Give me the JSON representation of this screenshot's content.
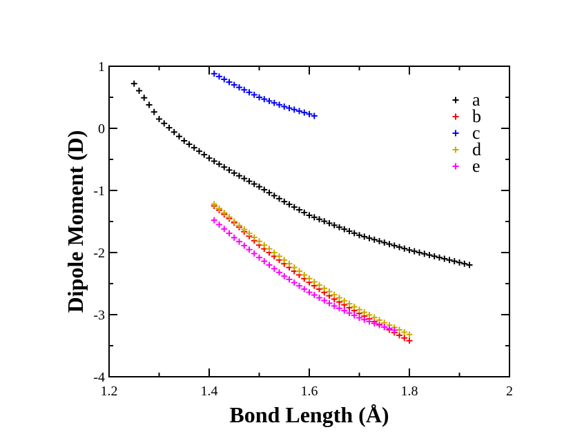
{
  "chart_data": {
    "type": "scatter",
    "title": "",
    "xlabel": "Bond Length (Å)",
    "ylabel": "Dipole Moment (D)",
    "xlim": [
      1.2,
      2.0
    ],
    "ylim": [
      -4,
      1
    ],
    "xticks": [
      1.2,
      1.4,
      1.6,
      1.8,
      2.0
    ],
    "xtick_labels": [
      "1.2",
      "1.4",
      "1.6",
      "1.8",
      "2"
    ],
    "yticks": [
      -4,
      -3,
      -2,
      -1,
      0,
      1
    ],
    "ytick_labels": [
      "-4",
      "-3",
      "-2",
      "-1",
      "0",
      "1"
    ],
    "grid": false,
    "marker": "+",
    "legend_position": "top-right",
    "series": [
      {
        "name": "a",
        "color": "#000000",
        "x": [
          1.25,
          1.3,
          1.35,
          1.4,
          1.45,
          1.5,
          1.55,
          1.6,
          1.65,
          1.7,
          1.75,
          1.8,
          1.85,
          1.9,
          1.92
        ],
        "y": [
          0.72,
          0.15,
          -0.2,
          -0.48,
          -0.72,
          -0.94,
          -1.18,
          -1.4,
          -1.56,
          -1.72,
          -1.84,
          -1.96,
          -2.06,
          -2.16,
          -2.2
        ]
      },
      {
        "name": "b",
        "color": "#ff0000",
        "x": [
          1.41,
          1.45,
          1.5,
          1.55,
          1.6,
          1.65,
          1.7,
          1.75,
          1.8
        ],
        "y": [
          -1.25,
          -1.52,
          -1.88,
          -2.18,
          -2.48,
          -2.75,
          -2.98,
          -3.2,
          -3.42
        ]
      },
      {
        "name": "c",
        "color": "#0000ff",
        "x": [
          1.41,
          1.45,
          1.5,
          1.55,
          1.6,
          1.61
        ],
        "y": [
          0.88,
          0.7,
          0.5,
          0.35,
          0.23,
          0.2
        ]
      },
      {
        "name": "d",
        "color": "#ccaa00",
        "x": [
          1.41,
          1.45,
          1.5,
          1.55,
          1.6,
          1.65,
          1.7,
          1.75,
          1.8
        ],
        "y": [
          -1.22,
          -1.5,
          -1.82,
          -2.12,
          -2.42,
          -2.68,
          -2.92,
          -3.13,
          -3.32
        ]
      },
      {
        "name": "e",
        "color": "#ff00ff",
        "x": [
          1.41,
          1.45,
          1.5,
          1.55,
          1.6,
          1.65,
          1.7,
          1.75,
          1.77
        ],
        "y": [
          -1.48,
          -1.76,
          -2.08,
          -2.38,
          -2.64,
          -2.86,
          -3.05,
          -3.2,
          -3.25
        ]
      }
    ]
  }
}
